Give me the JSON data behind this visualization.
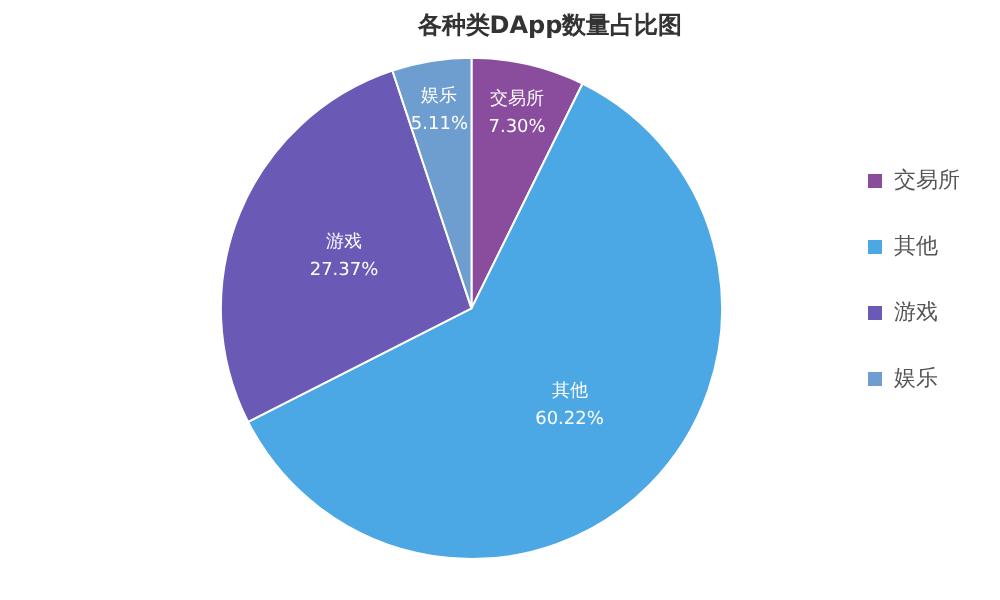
{
  "chart_data": {
    "type": "pie",
    "title": "各种类DApp数量占比图",
    "categories": [
      "交易所",
      "其他",
      "游戏",
      "娱乐"
    ],
    "values": [
      7.3,
      60.22,
      27.37,
      5.11
    ],
    "colors": [
      "#8a4c9c",
      "#4ba8e4",
      "#6a5ab6",
      "#6e9dcf"
    ],
    "value_labels": [
      "7.30%",
      "60.22%",
      "27.37%",
      "5.11%"
    ],
    "legend": "right"
  }
}
